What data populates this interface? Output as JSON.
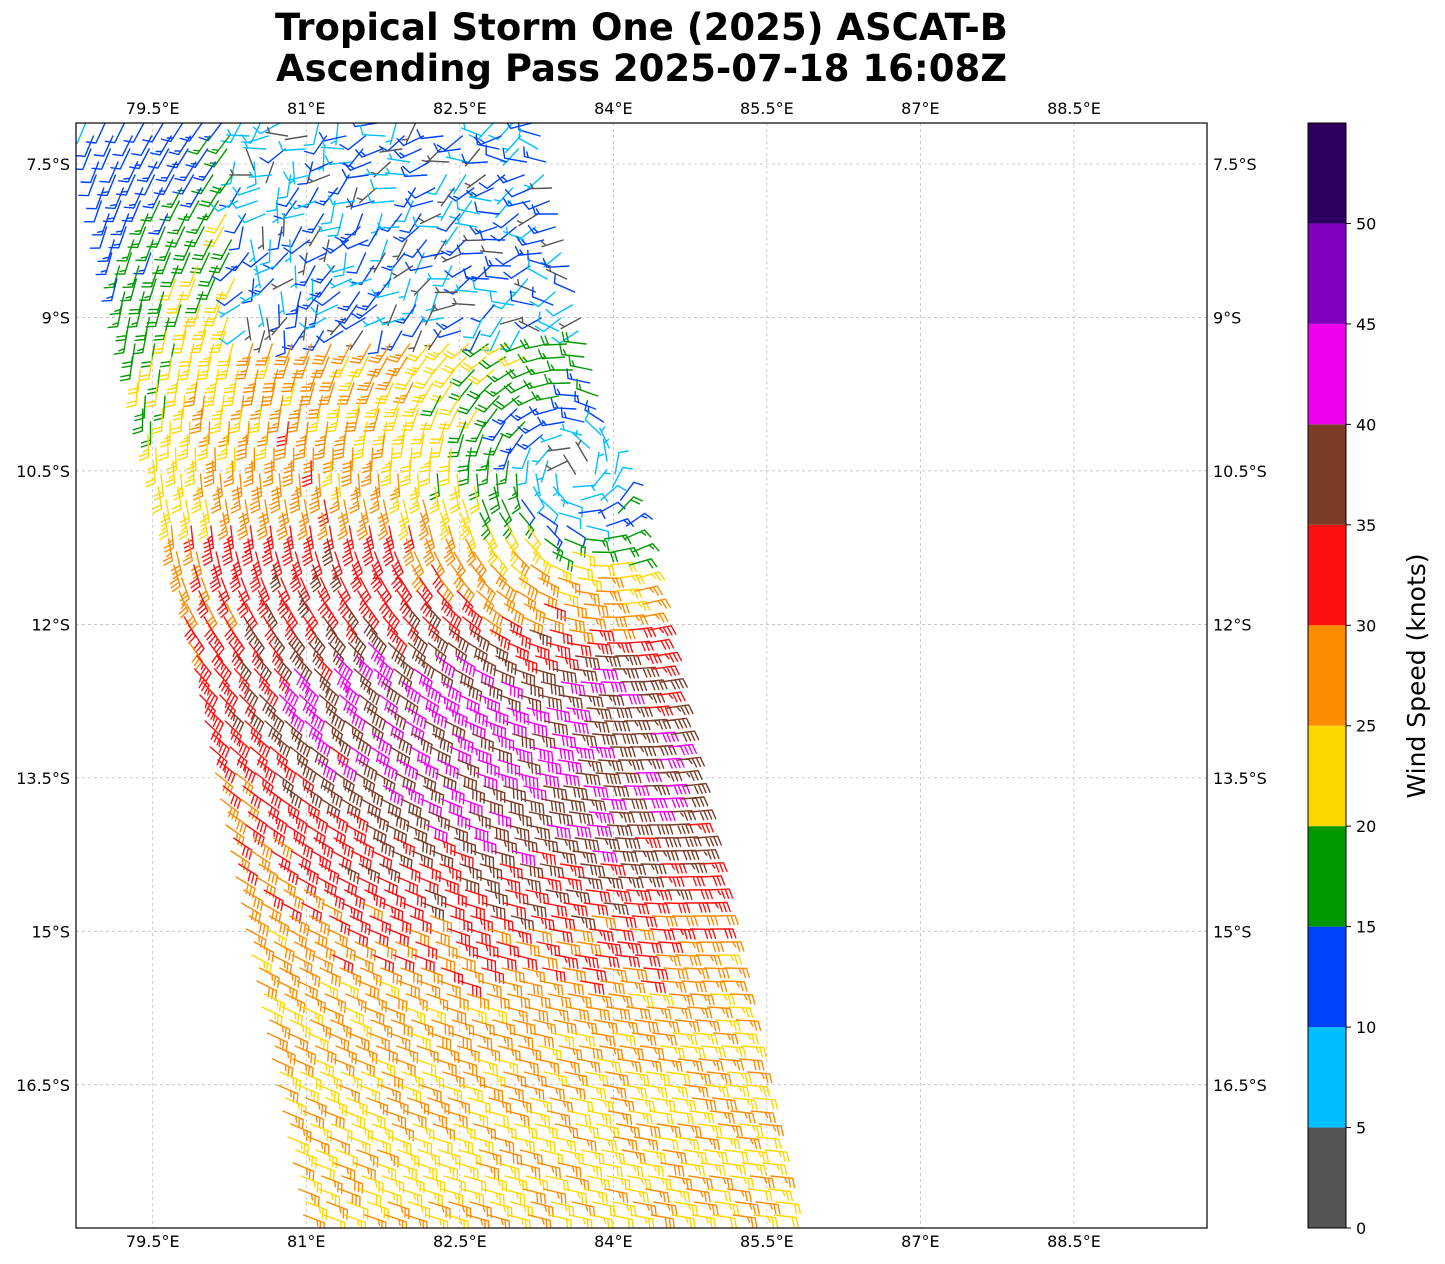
{
  "title": {
    "line1": "Tropical Storm One (2025) ASCAT-B",
    "line2": "Ascending Pass 2025-07-18 16:08Z"
  },
  "map": {
    "lon_range": [
      78.75,
      89.8
    ],
    "lat_range": [
      -17.9,
      -7.1
    ],
    "gridlines": true,
    "lon_ticks": [
      {
        "value": 79.5,
        "label": "79.5°E"
      },
      {
        "value": 81,
        "label": "81°E"
      },
      {
        "value": 82.5,
        "label": "82.5°E"
      },
      {
        "value": 84,
        "label": "84°E"
      },
      {
        "value": 85.5,
        "label": "85.5°E"
      },
      {
        "value": 87,
        "label": "87°E"
      },
      {
        "value": 88.5,
        "label": "88.5°E"
      }
    ],
    "lat_ticks": [
      {
        "value": -7.5,
        "label": "7.5°S"
      },
      {
        "value": -9,
        "label": "9°S"
      },
      {
        "value": -10.5,
        "label": "10.5°S"
      },
      {
        "value": -12,
        "label": "12°S"
      },
      {
        "value": -13.5,
        "label": "13.5°S"
      },
      {
        "value": -15,
        "label": "15°S"
      },
      {
        "value": -16.5,
        "label": "16.5°S"
      }
    ],
    "swath_corners": [
      [
        78.75,
        -7.1
      ],
      [
        83.3,
        -7.1
      ],
      [
        85.7,
        -17.9
      ],
      [
        80.9,
        -17.9
      ]
    ],
    "center": {
      "lon": 83.6,
      "lat": -10.6
    },
    "wind_symbol": "wind-barb"
  },
  "colorbar": {
    "label": "Wind Speed (knots)",
    "range": [
      0,
      55
    ],
    "bins": [
      {
        "min": 0,
        "max": 5,
        "color": "#555555"
      },
      {
        "min": 5,
        "max": 10,
        "color": "#00bfff"
      },
      {
        "min": 10,
        "max": 15,
        "color": "#0040ff"
      },
      {
        "min": 15,
        "max": 20,
        "color": "#009900"
      },
      {
        "min": 20,
        "max": 25,
        "color": "#ffd700"
      },
      {
        "min": 25,
        "max": 30,
        "color": "#ff8c00"
      },
      {
        "min": 30,
        "max": 35,
        "color": "#ff1010"
      },
      {
        "min": 35,
        "max": 40,
        "color": "#7b3c28"
      },
      {
        "min": 40,
        "max": 45,
        "color": "#ef00ef"
      },
      {
        "min": 45,
        "max": 50,
        "color": "#8000c0"
      },
      {
        "min": 50,
        "max": 55,
        "color": "#2b005f"
      }
    ],
    "ticks": [
      "0",
      "5",
      "10",
      "15",
      "20",
      "25",
      "30",
      "35",
      "40",
      "45",
      "50"
    ]
  }
}
